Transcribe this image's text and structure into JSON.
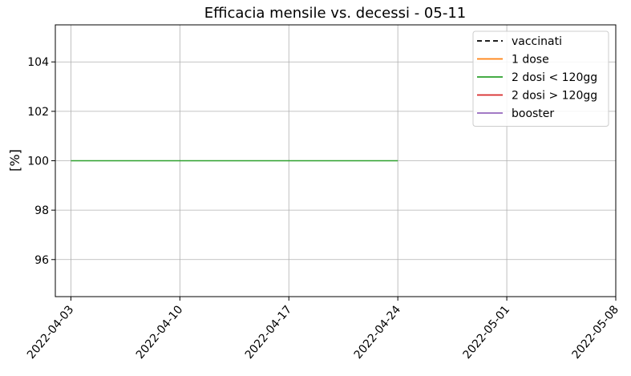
{
  "chart_data": {
    "type": "line",
    "title": "Efficacia mensile vs. decessi - 05-11",
    "xlabel": "",
    "ylabel": "[%]",
    "x_ticks": [
      "2022-04-03",
      "2022-04-10",
      "2022-04-17",
      "2022-04-24",
      "2022-05-01",
      "2022-05-08"
    ],
    "y_ticks": [
      96,
      98,
      100,
      102,
      104
    ],
    "xlim": [
      "2022-04-02",
      "2022-05-08"
    ],
    "ylim": [
      94.5,
      105.5
    ],
    "grid": true,
    "legend_position": "top-right",
    "series": [
      {
        "name": "vaccinati",
        "color": "#000000",
        "dash": "dashed",
        "x": [],
        "y": []
      },
      {
        "name": "1 dose",
        "color": "#ff7f0e",
        "dash": "solid",
        "x": [],
        "y": []
      },
      {
        "name": "2 dosi < 120gg",
        "color": "#2ca02c",
        "dash": "solid",
        "x": [
          "2022-04-03",
          "2022-04-24"
        ],
        "y": [
          100,
          100
        ]
      },
      {
        "name": "2 dosi > 120gg",
        "color": "#d62728",
        "dash": "solid",
        "x": [],
        "y": []
      },
      {
        "name": "booster",
        "color": "#9467bd",
        "dash": "solid",
        "x": [],
        "y": []
      }
    ]
  }
}
